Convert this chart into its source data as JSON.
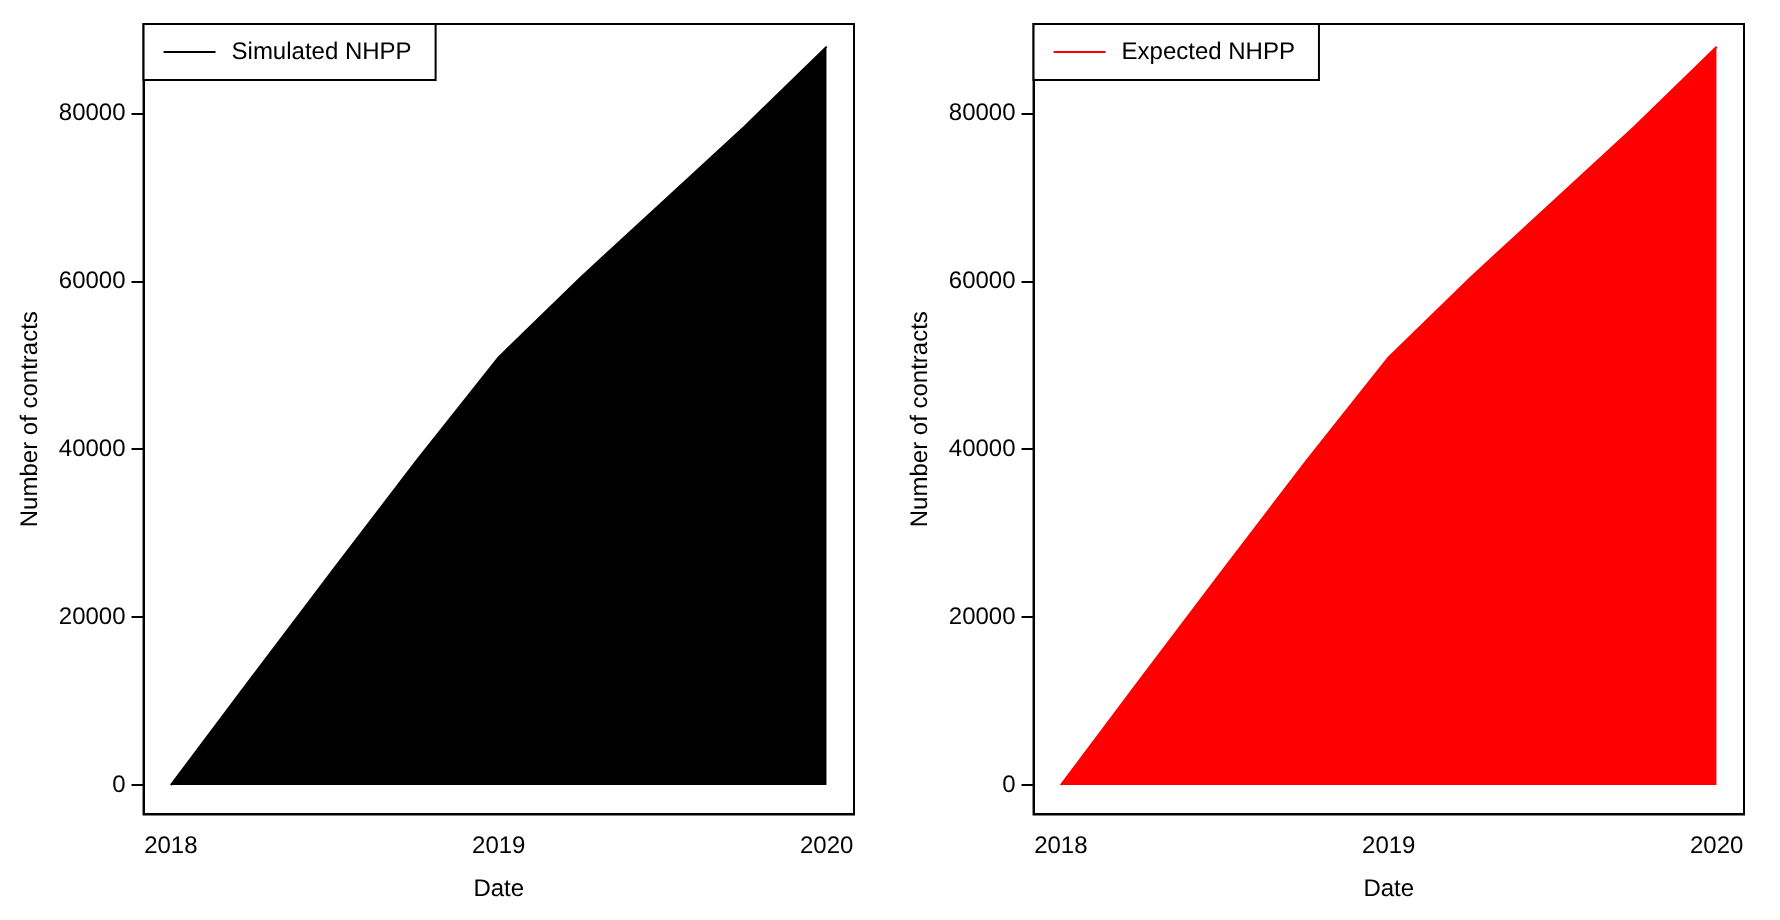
{
  "chart_data": [
    {
      "type": "area",
      "xlabel": "Date",
      "ylabel": "Number of contracts",
      "x": [
        "2018-01",
        "2018-04",
        "2018-07",
        "2018-10",
        "2019-01",
        "2019-04",
        "2019-07",
        "2019-10",
        "2020-01"
      ],
      "series": [
        {
          "name": "Simulated NHPP",
          "color": "#000000",
          "values": [
            0,
            13000,
            25900,
            38700,
            51000,
            60500,
            69500,
            78500,
            88000
          ]
        }
      ],
      "xlim": [
        "2017-12",
        "2020-02"
      ],
      "xticks": [
        {
          "value": "2018-01",
          "label": "2018"
        },
        {
          "value": "2019-01",
          "label": "2019"
        },
        {
          "value": "2020-01",
          "label": "2020"
        }
      ],
      "ylim": [
        -3500,
        90700
      ],
      "yticks": [
        0,
        20000,
        40000,
        60000,
        80000
      ],
      "grid": false,
      "legend": "top left"
    },
    {
      "type": "area",
      "xlabel": "Date",
      "ylabel": "Number of contracts",
      "x": [
        "2018-01",
        "2018-04",
        "2018-07",
        "2018-10",
        "2019-01",
        "2019-04",
        "2019-07",
        "2019-10",
        "2020-01"
      ],
      "series": [
        {
          "name": "Expected NHPP",
          "color": "#ff0000",
          "values": [
            0,
            13000,
            25900,
            38700,
            51000,
            60500,
            69500,
            78500,
            88000
          ]
        }
      ],
      "xlim": [
        "2017-12",
        "2020-02"
      ],
      "xticks": [
        {
          "value": "2018-01",
          "label": "2018"
        },
        {
          "value": "2019-01",
          "label": "2019"
        },
        {
          "value": "2020-01",
          "label": "2020"
        }
      ],
      "ylim": [
        -3500,
        90700
      ],
      "yticks": [
        0,
        20000,
        40000,
        60000,
        80000
      ],
      "grid": false,
      "legend": "top left"
    }
  ]
}
